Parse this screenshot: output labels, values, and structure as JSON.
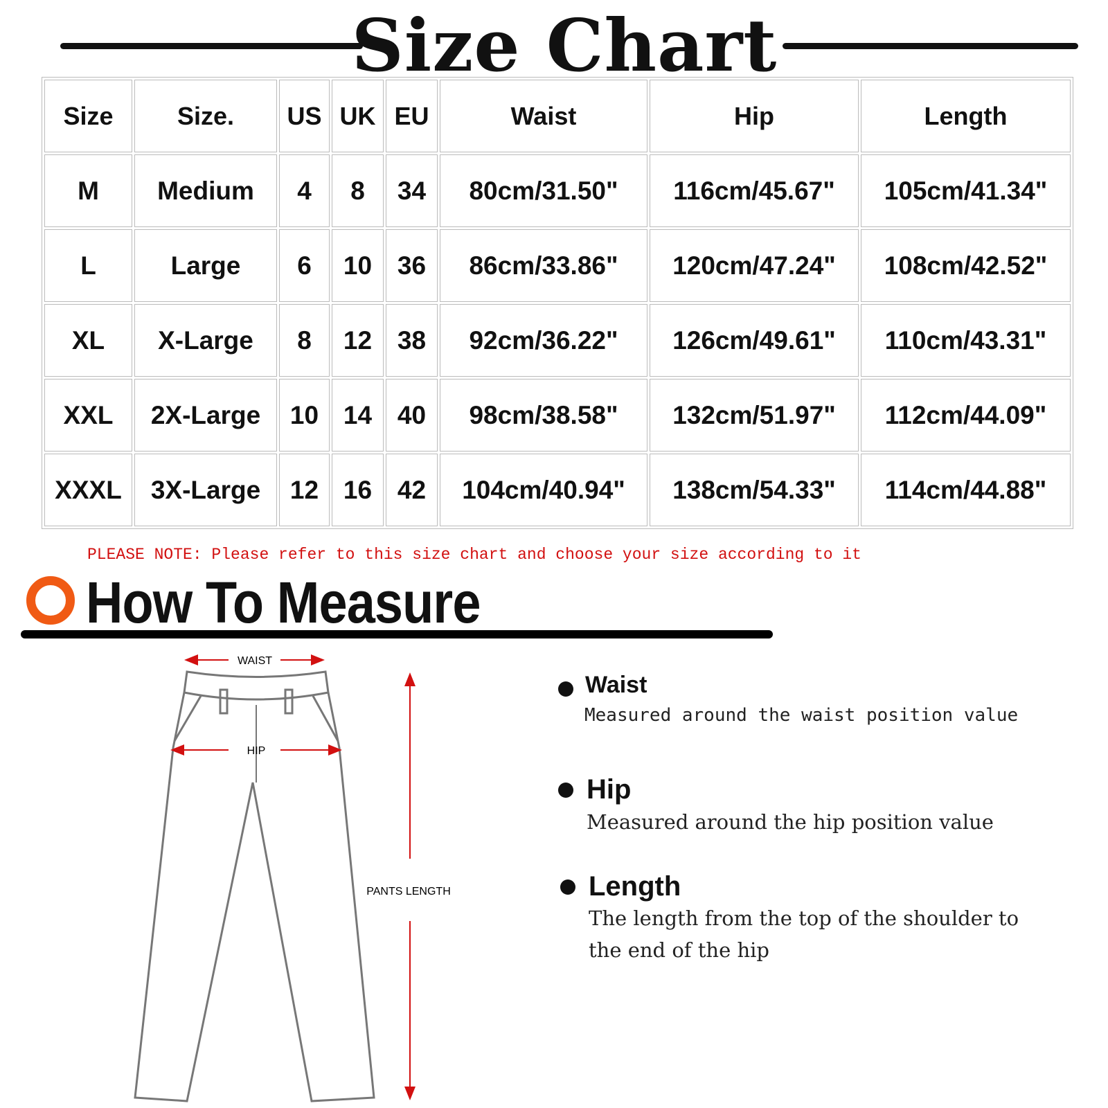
{
  "title": "Size Chart",
  "table": {
    "headers": [
      "Size",
      "Size.",
      "US",
      "UK",
      "EU",
      "Waist",
      "Hip",
      "Length"
    ],
    "rows": [
      [
        "M",
        "Medium",
        "4",
        "8",
        "34",
        "80cm/31.50\"",
        "116cm/45.67\"",
        "105cm/41.34\""
      ],
      [
        "L",
        "Large",
        "6",
        "10",
        "36",
        "86cm/33.86\"",
        "120cm/47.24\"",
        "108cm/42.52\""
      ],
      [
        "XL",
        "X-Large",
        "8",
        "12",
        "38",
        "92cm/36.22\"",
        "126cm/49.61\"",
        "110cm/43.31\""
      ],
      [
        "XXL",
        "2X-Large",
        "10",
        "14",
        "40",
        "98cm/38.58\"",
        "132cm/51.97\"",
        "112cm/44.09\""
      ],
      [
        "XXXL",
        "3X-Large",
        "12",
        "16",
        "42",
        "104cm/40.94\"",
        "138cm/54.33\"",
        "114cm/44.88\""
      ]
    ]
  },
  "note": "PLEASE NOTE: Please refer to this size chart and choose your size according to it",
  "how_to": {
    "title": "How To Measure",
    "accent": "#f05a14"
  },
  "diagram": {
    "waist": "WAIST",
    "hip": "HIP",
    "length": "PANTS LENGTH",
    "arrow_color": "#d21010"
  },
  "measures": [
    {
      "title": "Waist",
      "desc": "Measured around the waist position value"
    },
    {
      "title": "Hip",
      "desc": "Measured around the  hip position value"
    },
    {
      "title": "Length",
      "desc": "The length from the top of the shoulder to",
      "desc2": "the end of the hip"
    }
  ]
}
